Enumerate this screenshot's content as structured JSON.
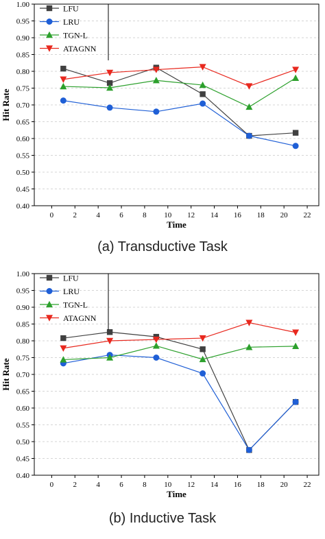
{
  "chart_data": [
    {
      "type": "line",
      "caption": "(a) Transductive Task",
      "xlabel": "Time",
      "ylabel": "Hit Rate",
      "x_ticks": [
        "0",
        "2",
        "4",
        "6",
        "8",
        "10",
        "12",
        "14",
        "16",
        "18",
        "20",
        "22"
      ],
      "y_ticks": [
        "0.40",
        "0.45",
        "0.50",
        "0.55",
        "0.60",
        "0.65",
        "0.70",
        "0.75",
        "0.80",
        "0.85",
        "0.90",
        "0.95",
        "1.00"
      ],
      "xlim": [
        -1.5,
        23
      ],
      "ylim": [
        0.4,
        1.0
      ],
      "grid": "horizontal dashed",
      "legend_position": "top-left",
      "x": [
        1,
        5,
        9,
        13,
        17,
        21
      ],
      "series": [
        {
          "name": "LFU",
          "color": "#404040",
          "marker": "square",
          "values": [
            0.808,
            0.765,
            0.811,
            0.732,
            0.608,
            0.617
          ]
        },
        {
          "name": "LRU",
          "color": "#1f5fd6",
          "marker": "circle",
          "values": [
            0.713,
            0.692,
            0.68,
            0.704,
            0.608,
            0.578
          ]
        },
        {
          "name": "TGN-L",
          "color": "#2ca02c",
          "marker": "triangle-up",
          "values": [
            0.755,
            0.751,
            0.773,
            0.759,
            0.694,
            0.78
          ]
        },
        {
          "name": "ATAGNN",
          "color": "#e8281e",
          "marker": "triangle-down",
          "values": [
            0.776,
            0.796,
            0.805,
            0.813,
            0.756,
            0.805
          ]
        }
      ]
    },
    {
      "type": "line",
      "caption": "(b) Inductive Task",
      "xlabel": "Time",
      "ylabel": "Hit Rate",
      "x_ticks": [
        "0",
        "2",
        "4",
        "6",
        "8",
        "10",
        "12",
        "14",
        "16",
        "18",
        "20",
        "22"
      ],
      "y_ticks": [
        "0.40",
        "0.45",
        "0.50",
        "0.55",
        "0.60",
        "0.65",
        "0.70",
        "0.75",
        "0.80",
        "0.85",
        "0.90",
        "0.95",
        "1.00"
      ],
      "xlim": [
        -1.5,
        23
      ],
      "ylim": [
        0.4,
        1.0
      ],
      "grid": "horizontal dashed",
      "legend_position": "top-left",
      "x": [
        1,
        5,
        9,
        13,
        17,
        21
      ],
      "series": [
        {
          "name": "LFU",
          "color": "#404040",
          "marker": "square",
          "values": [
            0.808,
            0.826,
            0.812,
            0.775,
            0.475,
            0.618
          ]
        },
        {
          "name": "LRU",
          "color": "#1f5fd6",
          "marker": "circle",
          "values": [
            0.733,
            0.758,
            0.75,
            0.703,
            0.475,
            0.618
          ]
        },
        {
          "name": "TGN-L",
          "color": "#2ca02c",
          "marker": "triangle-up",
          "values": [
            0.744,
            0.75,
            0.785,
            0.745,
            0.781,
            0.784
          ]
        },
        {
          "name": "ATAGNN",
          "color": "#e8281e",
          "marker": "triangle-down",
          "values": [
            0.778,
            0.8,
            0.804,
            0.808,
            0.854,
            0.825
          ]
        }
      ]
    }
  ]
}
